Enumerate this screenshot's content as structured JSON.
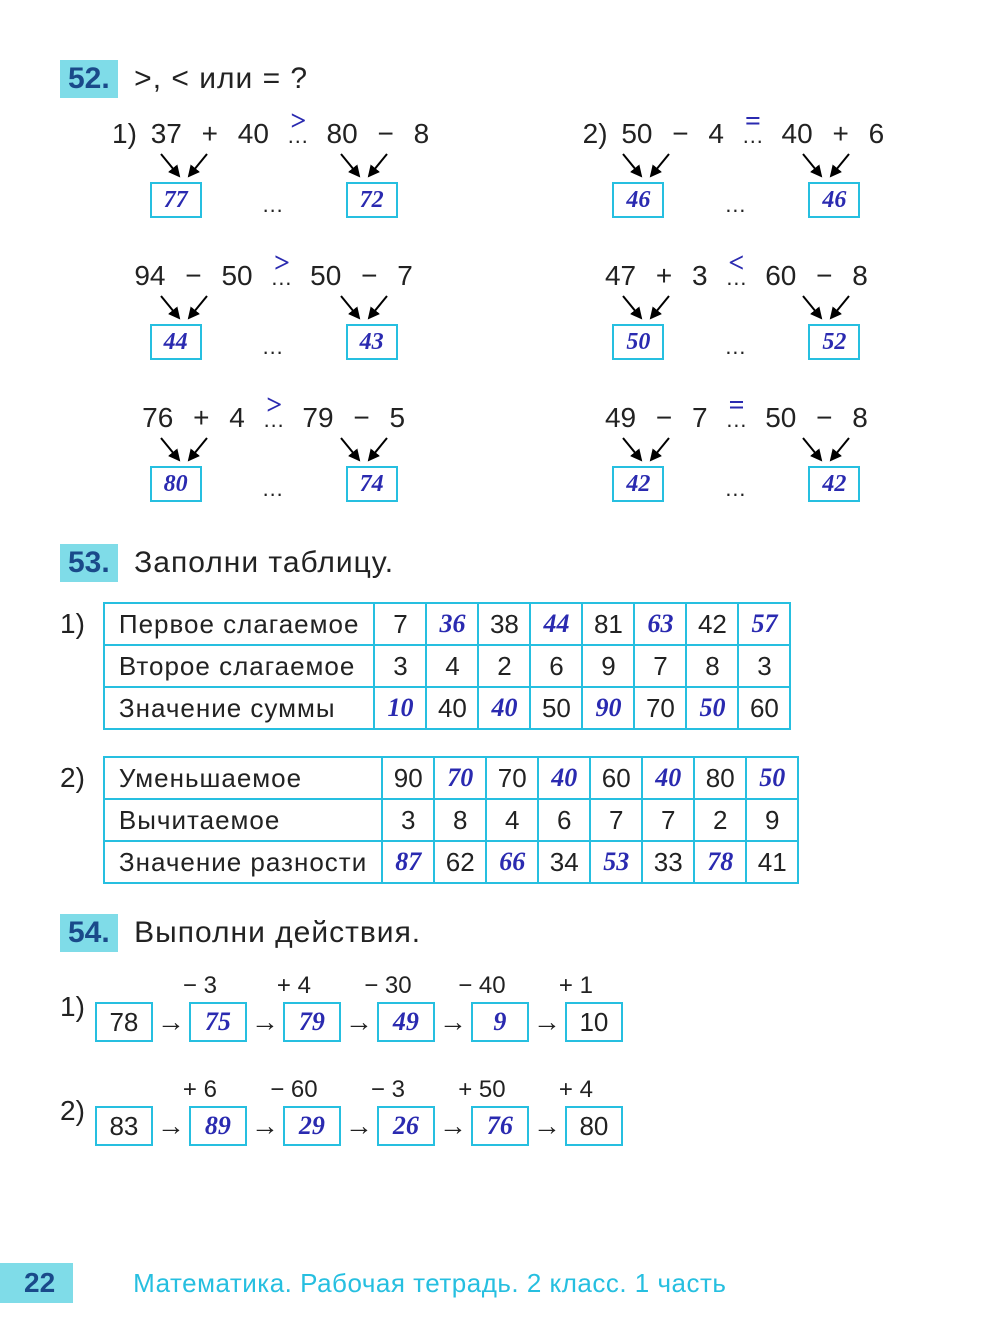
{
  "colors": {
    "accent_bg": "#7fdce8",
    "accent_text": "#1a4a8a",
    "border": "#26bfe0",
    "handwriting": "#2a2ab0",
    "text": "#222222",
    "footer_text": "#26bfe0"
  },
  "ex52": {
    "num": "52.",
    "title": ">,  <  или  =  ?",
    "rows": [
      {
        "left": {
          "idx": "1)",
          "a": "37",
          "op1": "+",
          "b": "40",
          "cmp": ">",
          "c": "80",
          "op2": "−",
          "d": "8",
          "r1": "77",
          "r2": "72"
        },
        "right": {
          "idx": "2)",
          "a": "50",
          "op1": "−",
          "b": "4",
          "cmp": "=",
          "c": "40",
          "op2": "+",
          "d": "6",
          "r1": "46",
          "r2": "46"
        }
      },
      {
        "left": {
          "idx": "",
          "a": "94",
          "op1": "−",
          "b": "50",
          "cmp": ">",
          "c": "50",
          "op2": "−",
          "d": "7",
          "r1": "44",
          "r2": "43"
        },
        "right": {
          "idx": "",
          "a": "47",
          "op1": "+",
          "b": "3",
          "cmp": "<",
          "c": "60",
          "op2": "−",
          "d": "8",
          "r1": "50",
          "r2": "52"
        }
      },
      {
        "left": {
          "idx": "",
          "a": "76",
          "op1": "+",
          "b": "4",
          "cmp": ">",
          "c": "79",
          "op2": "−",
          "d": "5",
          "r1": "80",
          "r2": "74"
        },
        "right": {
          "idx": "",
          "a": "49",
          "op1": "−",
          "b": "7",
          "cmp": "=",
          "c": "50",
          "op2": "−",
          "d": "8",
          "r1": "42",
          "r2": "42"
        }
      }
    ]
  },
  "ex53": {
    "num": "53.",
    "title": "Заполни  таблицу.",
    "tables": [
      {
        "idx": "1)",
        "rows": [
          {
            "label": "Первое  слагаемое",
            "cells": [
              {
                "v": "7",
                "h": false
              },
              {
                "v": "36",
                "h": true
              },
              {
                "v": "38",
                "h": false
              },
              {
                "v": "44",
                "h": true
              },
              {
                "v": "81",
                "h": false
              },
              {
                "v": "63",
                "h": true
              },
              {
                "v": "42",
                "h": false
              },
              {
                "v": "57",
                "h": true
              }
            ]
          },
          {
            "label": "Второе  слагаемое",
            "cells": [
              {
                "v": "3",
                "h": false
              },
              {
                "v": "4",
                "h": false
              },
              {
                "v": "2",
                "h": false
              },
              {
                "v": "6",
                "h": false
              },
              {
                "v": "9",
                "h": false
              },
              {
                "v": "7",
                "h": false
              },
              {
                "v": "8",
                "h": false
              },
              {
                "v": "3",
                "h": false
              }
            ]
          },
          {
            "label": "Значение  суммы",
            "cells": [
              {
                "v": "10",
                "h": true
              },
              {
                "v": "40",
                "h": false
              },
              {
                "v": "40",
                "h": true
              },
              {
                "v": "50",
                "h": false
              },
              {
                "v": "90",
                "h": true
              },
              {
                "v": "70",
                "h": false
              },
              {
                "v": "50",
                "h": true
              },
              {
                "v": "60",
                "h": false
              }
            ]
          }
        ]
      },
      {
        "idx": "2)",
        "rows": [
          {
            "label": "Уменьшаемое",
            "cells": [
              {
                "v": "90",
                "h": false
              },
              {
                "v": "70",
                "h": true
              },
              {
                "v": "70",
                "h": false
              },
              {
                "v": "40",
                "h": true
              },
              {
                "v": "60",
                "h": false
              },
              {
                "v": "40",
                "h": true
              },
              {
                "v": "80",
                "h": false
              },
              {
                "v": "50",
                "h": true
              }
            ]
          },
          {
            "label": "Вычитаемое",
            "cells": [
              {
                "v": "3",
                "h": false
              },
              {
                "v": "8",
                "h": false
              },
              {
                "v": "4",
                "h": false
              },
              {
                "v": "6",
                "h": false
              },
              {
                "v": "7",
                "h": false
              },
              {
                "v": "7",
                "h": false
              },
              {
                "v": "2",
                "h": false
              },
              {
                "v": "9",
                "h": false
              }
            ]
          },
          {
            "label": "Значение  разности",
            "cells": [
              {
                "v": "87",
                "h": true
              },
              {
                "v": "62",
                "h": false
              },
              {
                "v": "66",
                "h": true
              },
              {
                "v": "34",
                "h": false
              },
              {
                "v": "53",
                "h": true
              },
              {
                "v": "33",
                "h": false
              },
              {
                "v": "78",
                "h": true
              },
              {
                "v": "41",
                "h": false
              }
            ]
          }
        ]
      }
    ]
  },
  "ex54": {
    "num": "54.",
    "title": "Выполни  действия.",
    "chains": [
      {
        "idx": "1)",
        "start": {
          "v": "78",
          "h": false
        },
        "steps": [
          {
            "op": "− 3",
            "v": "75",
            "h": true
          },
          {
            "op": "+ 4",
            "v": "79",
            "h": true
          },
          {
            "op": "− 30",
            "v": "49",
            "h": true
          },
          {
            "op": "− 40",
            "v": "9",
            "h": true
          },
          {
            "op": "+ 1",
            "v": "10",
            "h": false
          }
        ]
      },
      {
        "idx": "2)",
        "start": {
          "v": "83",
          "h": false
        },
        "steps": [
          {
            "op": "+ 6",
            "v": "89",
            "h": true
          },
          {
            "op": "− 60",
            "v": "29",
            "h": true
          },
          {
            "op": "− 3",
            "v": "26",
            "h": true
          },
          {
            "op": "+ 50",
            "v": "76",
            "h": true
          },
          {
            "op": "+ 4",
            "v": "80",
            "h": false
          }
        ]
      }
    ]
  },
  "footer": {
    "page": "22",
    "text": "Математика. Рабочая тетрадь. 2 класс. 1 часть"
  }
}
